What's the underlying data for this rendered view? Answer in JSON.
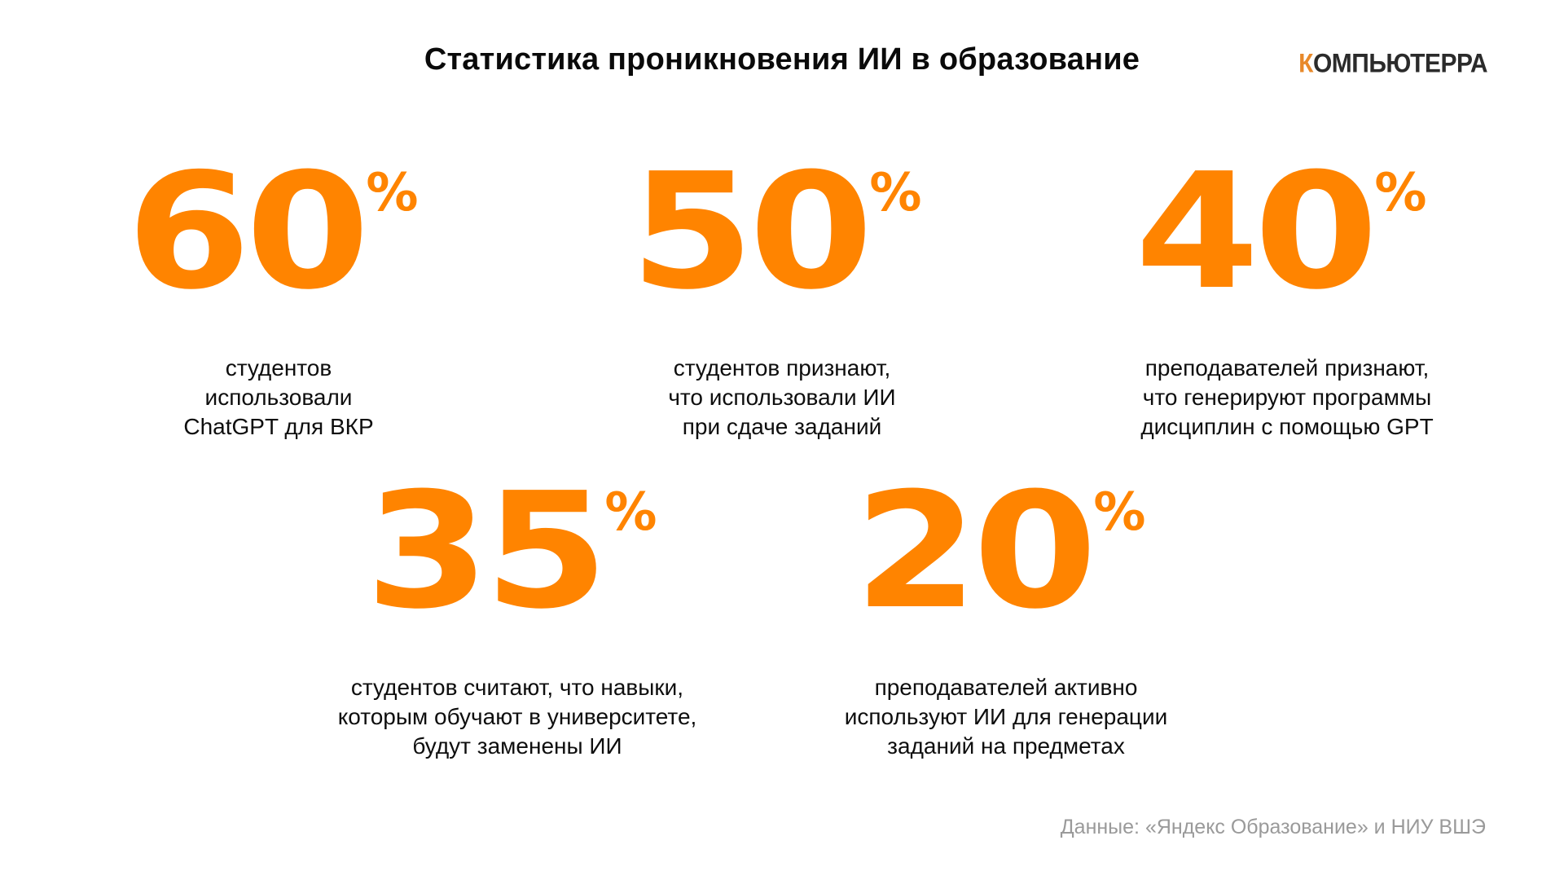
{
  "title": "Статистика проникновения ИИ в образование",
  "logo": {
    "first_letter": "К",
    "rest": "ОМПЬЮТЕРРА",
    "accent_color": "#e8892a"
  },
  "accent_color": "#ff8400",
  "stats": [
    {
      "value": "60",
      "unit": "%",
      "caption": "студентов\nиспользовали\nChatGPT для ВКР"
    },
    {
      "value": "50",
      "unit": "%",
      "caption": "студентов признают,\nчто использовали ИИ\nпри сдаче заданий"
    },
    {
      "value": "40",
      "unit": "%",
      "caption": "преподавателей признают,\nчто генерируют программы\nдисциплин с помощью GPT"
    },
    {
      "value": "35",
      "unit": "%",
      "caption": "студентов считают, что навыки,\nкоторым обучают в университете,\nбудут заменены ИИ"
    },
    {
      "value": "20",
      "unit": "%",
      "caption": "преподавателей активно\nиспользуют ИИ для генерации\nзаданий на предметах"
    }
  ],
  "source": "Данные: «Яндекс Образование» и НИУ ВШЭ"
}
